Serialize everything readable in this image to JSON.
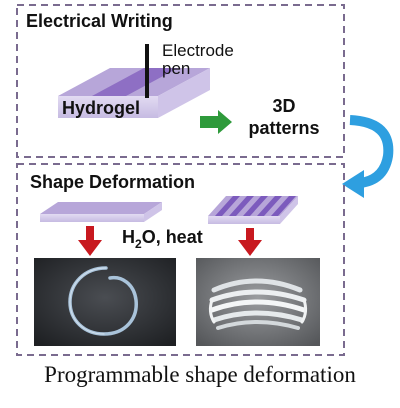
{
  "panels": {
    "writing": {
      "title": "Electrical Writing",
      "electrode_label_line1": "Electrode",
      "electrode_label_line2": "pen",
      "hydrogel_label": "Hydrogel",
      "output_line1": "3D",
      "output_line2": "patterns"
    },
    "deformation": {
      "title": "Shape Deformation",
      "stimulus_prefix": "H",
      "stimulus_subscript": "2",
      "stimulus_suffix": "O, heat"
    }
  },
  "caption": "Programmable shape deformation",
  "colors": {
    "panel_border": "#7a6b8f",
    "gel_top": "#b7a6d9",
    "gel_stripe": "#8e6fc4",
    "gel_side": "#d9d0ee",
    "green_arrow": "#2e9a3b",
    "blue_arrow": "#2e9fe0",
    "red_arrow": "#c8191f"
  },
  "icons": {
    "electrode_pen": "pen-bar-icon",
    "writing_arrow": "arrow-right-icon",
    "transition_arrow": "curved-arrow-icon",
    "deform_arrow": "arrow-down-icon"
  }
}
